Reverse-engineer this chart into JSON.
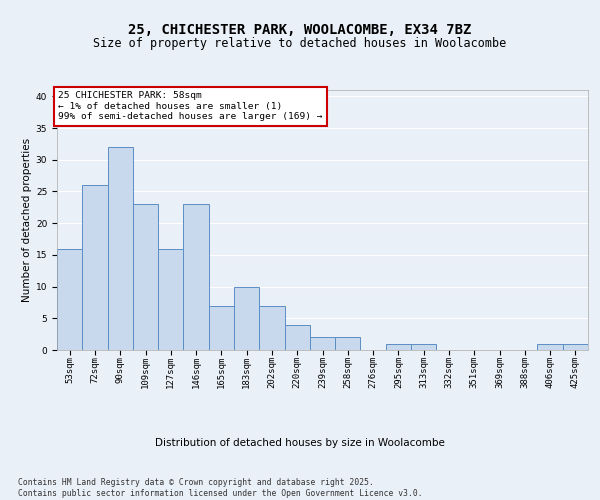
{
  "title1": "25, CHICHESTER PARK, WOOLACOMBE, EX34 7BZ",
  "title2": "Size of property relative to detached houses in Woolacombe",
  "xlabel": "Distribution of detached houses by size in Woolacombe",
  "ylabel": "Number of detached properties",
  "categories": [
    "53sqm",
    "72sqm",
    "90sqm",
    "109sqm",
    "127sqm",
    "146sqm",
    "165sqm",
    "183sqm",
    "202sqm",
    "220sqm",
    "239sqm",
    "258sqm",
    "276sqm",
    "295sqm",
    "313sqm",
    "332sqm",
    "351sqm",
    "369sqm",
    "388sqm",
    "406sqm",
    "425sqm"
  ],
  "values": [
    16,
    26,
    32,
    23,
    16,
    23,
    7,
    10,
    7,
    4,
    2,
    2,
    0,
    1,
    1,
    0,
    0,
    0,
    0,
    1,
    1
  ],
  "bar_color": "#c9d9ed",
  "bar_edge_color": "#5b8ec5",
  "annotation_box_color": "#ffffff",
  "annotation_border_color": "#cc0000",
  "annotation_text": "25 CHICHESTER PARK: 58sqm\n← 1% of detached houses are smaller (1)\n99% of semi-detached houses are larger (169) →",
  "annotation_fontsize": 6.8,
  "ylim": [
    0,
    41
  ],
  "yticks": [
    0,
    5,
    10,
    15,
    20,
    25,
    30,
    35,
    40
  ],
  "footer_text": "Contains HM Land Registry data © Crown copyright and database right 2025.\nContains public sector information licensed under the Open Government Licence v3.0.",
  "bg_color": "#eaf0f8",
  "plot_bg_color": "#eaf0f8",
  "grid_color": "#ffffff",
  "title_fontsize": 10,
  "subtitle_fontsize": 8.5,
  "axis_label_fontsize": 7.5,
  "tick_fontsize": 6.5
}
